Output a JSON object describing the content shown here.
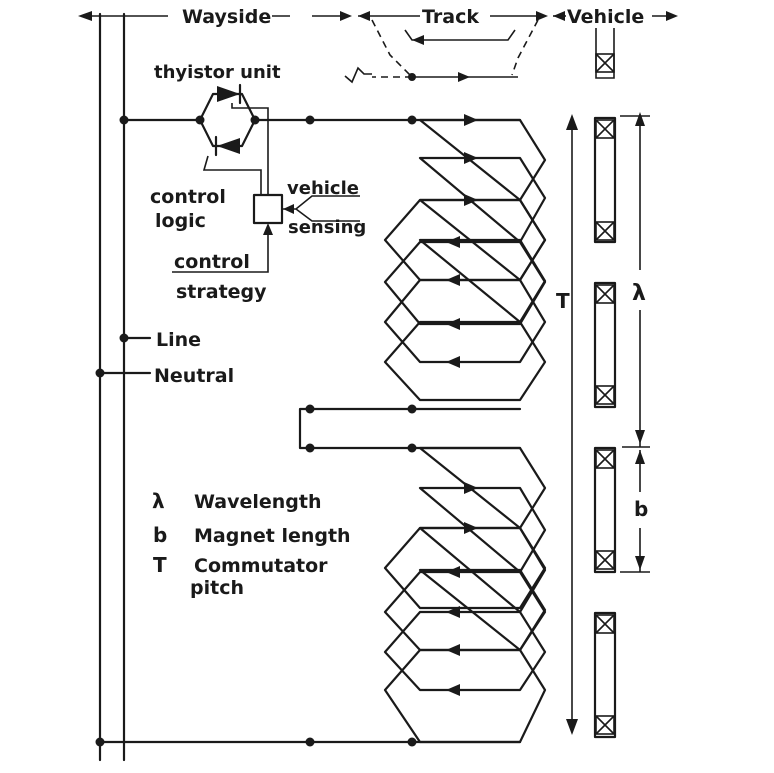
{
  "header": {
    "wayside": "Wayside",
    "track": "Track",
    "vehicle": "Vehicle"
  },
  "labels": {
    "thyristor_unit": "thyistor unit",
    "control_logic_line1": "control",
    "control_logic_line2": "logic",
    "vehicle_sensing_line1": "vehicle",
    "vehicle_sensing_line2": "sensing",
    "control_strategy_line1": "control",
    "control_strategy_line2": "strategy",
    "line": "Line",
    "neutral": "Neutral",
    "T": "T",
    "lambda": "λ",
    "b": "b"
  },
  "legend": [
    {
      "symbol": "λ",
      "text": "Wavelength"
    },
    {
      "symbol": "b",
      "text": "Magnet length"
    },
    {
      "symbol": "T",
      "text": "Commutator",
      "text2": "pitch"
    }
  ]
}
